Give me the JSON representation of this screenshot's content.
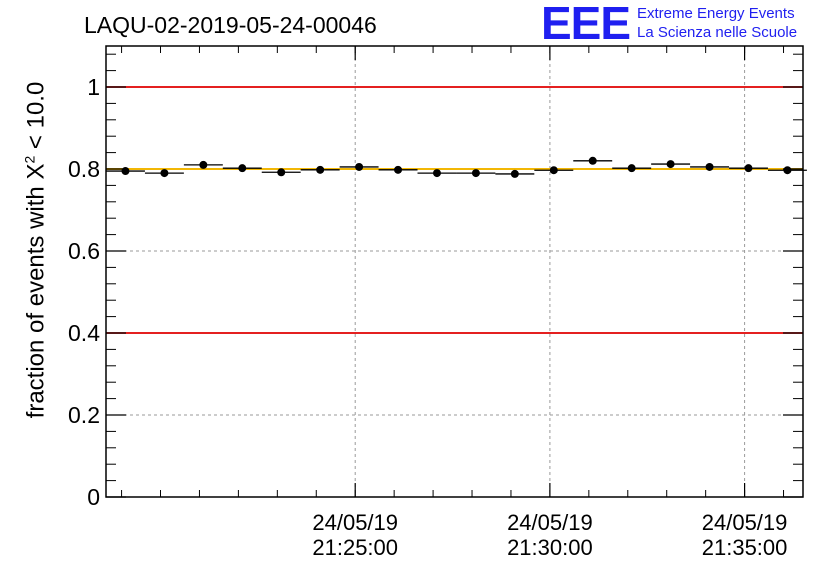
{
  "title": "LAQU-02-2019-05-24-00046",
  "logo": {
    "mark": "EEE",
    "line1": "Extreme Energy Events",
    "line2": "La Scienza nelle Scuole"
  },
  "colors": {
    "reference_lines": "#e00000",
    "mean_line": "#f2b705",
    "points": "#000000",
    "logo": "#1f1ff0"
  },
  "chart_data": {
    "type": "scatter",
    "title": "LAQU-02-2019-05-24-00046",
    "xlabel": "",
    "ylabel": "fraction of events with χ² < 10.0",
    "ylabel_parts": {
      "pre": "fraction of events with X",
      "sup": "2",
      "post": " < 10.0"
    },
    "x_unit": "minutes since 21:20:00",
    "xlim": [
      -1.4,
      16.5
    ],
    "ylim": [
      0,
      1.1
    ],
    "yticks": [
      0,
      0.2,
      0.4,
      0.6,
      0.8,
      1
    ],
    "ytick_labels": [
      "0",
      "0.2",
      "0.4",
      "0.6",
      "0.8",
      "1"
    ],
    "xticks": [
      {
        "x": 5,
        "date": "24/05/19",
        "time": "21:25:00"
      },
      {
        "x": 10,
        "date": "24/05/19",
        "time": "21:30:00"
      },
      {
        "x": 15,
        "date": "24/05/19",
        "time": "21:35:00"
      }
    ],
    "grid": true,
    "bin_width": 1,
    "points": [
      {
        "x": -0.9,
        "y": 0.795
      },
      {
        "x": 0.1,
        "y": 0.79
      },
      {
        "x": 1.1,
        "y": 0.81
      },
      {
        "x": 2.1,
        "y": 0.802
      },
      {
        "x": 3.1,
        "y": 0.792
      },
      {
        "x": 4.1,
        "y": 0.798
      },
      {
        "x": 5.1,
        "y": 0.805
      },
      {
        "x": 6.1,
        "y": 0.798
      },
      {
        "x": 7.1,
        "y": 0.79
      },
      {
        "x": 8.1,
        "y": 0.79
      },
      {
        "x": 9.1,
        "y": 0.788
      },
      {
        "x": 10.1,
        "y": 0.797
      },
      {
        "x": 11.1,
        "y": 0.82
      },
      {
        "x": 12.1,
        "y": 0.802
      },
      {
        "x": 13.1,
        "y": 0.812
      },
      {
        "x": 14.1,
        "y": 0.805
      },
      {
        "x": 15.1,
        "y": 0.802
      },
      {
        "x": 16.1,
        "y": 0.797
      }
    ],
    "reference_lines": [
      1.0,
      0.4
    ],
    "mean_line": 0.8
  }
}
